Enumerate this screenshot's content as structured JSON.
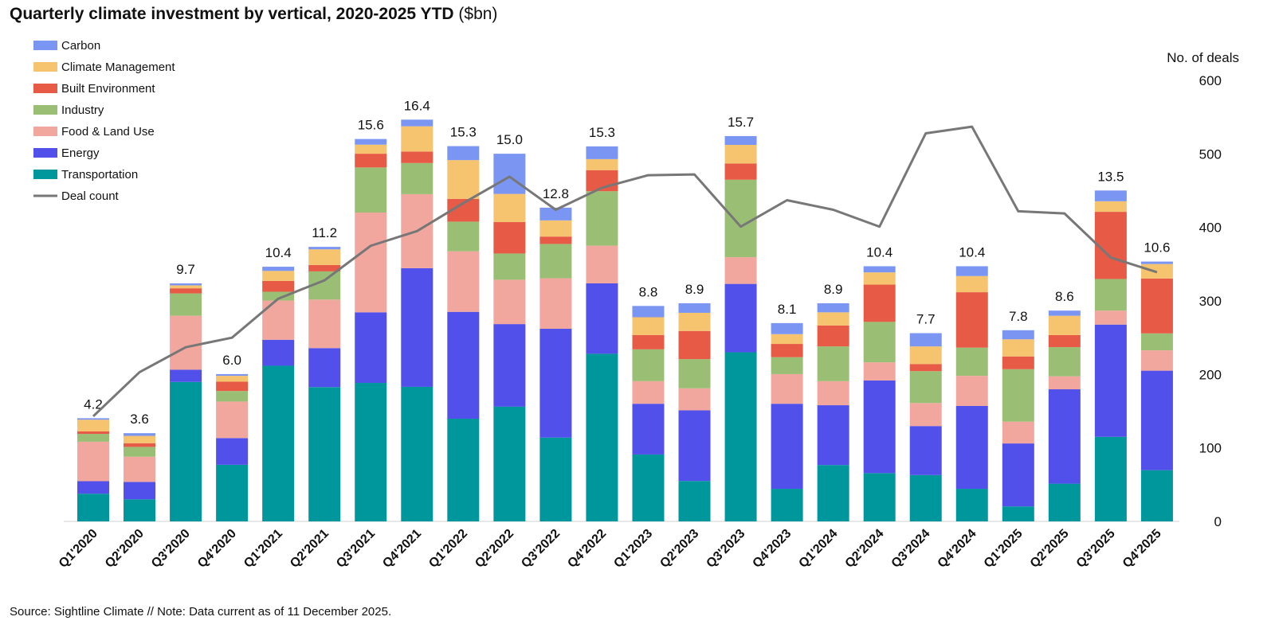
{
  "title": {
    "bold": "Quarterly climate investment by vertical, 2020-2025 YTD",
    "unit": "($bn)"
  },
  "source": "Source: Sightline Climate  //  Note: Data current as of 11 December 2025.",
  "chart_data": {
    "type": "bar",
    "stacked": true,
    "categories": [
      "Q1'2020",
      "Q2'2020",
      "Q3'2020",
      "Q4'2020",
      "Q1'2021",
      "Q2'2021",
      "Q3'2021",
      "Q4'2021",
      "Q1'2022",
      "Q2'2022",
      "Q3'2022",
      "Q4'2022",
      "Q1'2023",
      "Q2'2023",
      "Q3'2023",
      "Q4'2023",
      "Q1'2024",
      "Q2'2024",
      "Q3'2024",
      "Q4'2024",
      "Q1'2025",
      "Q2'2025",
      "Q3'2025",
      "Q4'2025"
    ],
    "totals": [
      "4.2",
      "3.6",
      "9.7",
      "6.0",
      "10.4",
      "11.2",
      "15.6",
      "16.4",
      "15.3",
      "15.0",
      "12.8",
      "15.3",
      "8.8",
      "8.9",
      "15.7",
      "8.1",
      "8.9",
      "10.4",
      "7.7",
      "10.4",
      "7.8",
      "8.6",
      "13.5",
      "10.6"
    ],
    "series": [
      {
        "name": "Transportation",
        "color": "#00979c",
        "values": [
          1.13,
          0.9,
          5.69,
          2.31,
          6.35,
          5.48,
          5.65,
          5.49,
          4.19,
          4.68,
          3.42,
          6.84,
          2.73,
          1.65,
          6.9,
          1.33,
          2.3,
          1.97,
          1.89,
          1.33,
          0.61,
          1.54,
          3.45,
          2.09
        ]
      },
      {
        "name": "Energy",
        "color": "#5250ea",
        "values": [
          0.51,
          0.71,
          0.5,
          1.09,
          1.06,
          1.59,
          2.88,
          4.84,
          4.36,
          3.37,
          4.44,
          2.87,
          2.07,
          2.88,
          2.79,
          3.47,
          2.44,
          3.78,
          2.0,
          3.38,
          2.57,
          3.85,
          4.58,
          4.06
        ]
      },
      {
        "name": "Food & Land Use",
        "color": "#f1a79d",
        "values": [
          1.61,
          1.03,
          2.2,
          1.49,
          1.6,
          1.98,
          4.07,
          3.02,
          2.47,
          1.81,
          2.06,
          1.54,
          0.92,
          0.9,
          1.09,
          1.21,
          0.98,
          0.74,
          0.94,
          1.23,
          0.89,
          0.53,
          0.57,
          0.83
        ]
      },
      {
        "name": "Industry",
        "color": "#9abf74",
        "values": [
          0.32,
          0.4,
          0.91,
          0.43,
          0.36,
          1.15,
          1.84,
          1.27,
          1.21,
          1.07,
          1.4,
          2.22,
          1.3,
          1.19,
          3.16,
          0.69,
          1.42,
          1.65,
          1.3,
          1.15,
          2.14,
          1.19,
          1.29,
          0.69
        ]
      },
      {
        "name": "Built Environment",
        "color": "#e65a46",
        "values": [
          0.1,
          0.15,
          0.21,
          0.38,
          0.44,
          0.26,
          0.56,
          0.47,
          0.93,
          1.28,
          0.3,
          0.86,
          0.58,
          1.15,
          0.66,
          0.54,
          0.85,
          1.52,
          0.29,
          2.26,
          0.52,
          0.49,
          2.74,
          2.24
        ]
      },
      {
        "name": "Climate Management",
        "color": "#f6c36f",
        "values": [
          0.48,
          0.3,
          0.12,
          0.24,
          0.41,
          0.64,
          0.37,
          1.03,
          1.58,
          1.15,
          0.66,
          0.45,
          0.73,
          0.74,
          0.76,
          0.4,
          0.54,
          0.5,
          0.72,
          0.66,
          0.7,
          0.79,
          0.43,
          0.59
        ]
      },
      {
        "name": "Carbon",
        "color": "#7b96f2",
        "values": [
          0.06,
          0.11,
          0.08,
          0.07,
          0.17,
          0.1,
          0.23,
          0.27,
          0.57,
          1.64,
          0.52,
          0.52,
          0.46,
          0.39,
          0.36,
          0.45,
          0.37,
          0.25,
          0.54,
          0.4,
          0.37,
          0.21,
          0.44,
          0.1
        ]
      }
    ],
    "line": {
      "name": "Deal count",
      "color": "#777777",
      "axis": "right",
      "values": [
        143,
        203,
        237,
        250,
        303,
        328,
        375,
        395,
        433,
        469,
        424,
        454,
        471,
        472,
        401,
        437,
        424,
        401,
        528,
        537,
        422,
        419,
        359,
        339
      ]
    },
    "legend_order": [
      "Carbon",
      "Climate Management",
      "Built Environment",
      "Industry",
      "Food & Land Use",
      "Energy",
      "Transportation",
      "Deal count"
    ],
    "legend_placement": "top-left",
    "y_left": {
      "visible": false,
      "unit": "$bn",
      "ylim": [
        0,
        18.1
      ]
    },
    "y_right": {
      "label": "No. of deals",
      "ylim": [
        0,
        600
      ],
      "ticks": [
        "0",
        "100",
        "200",
        "300",
        "400",
        "500",
        "600"
      ]
    },
    "grid": false
  }
}
